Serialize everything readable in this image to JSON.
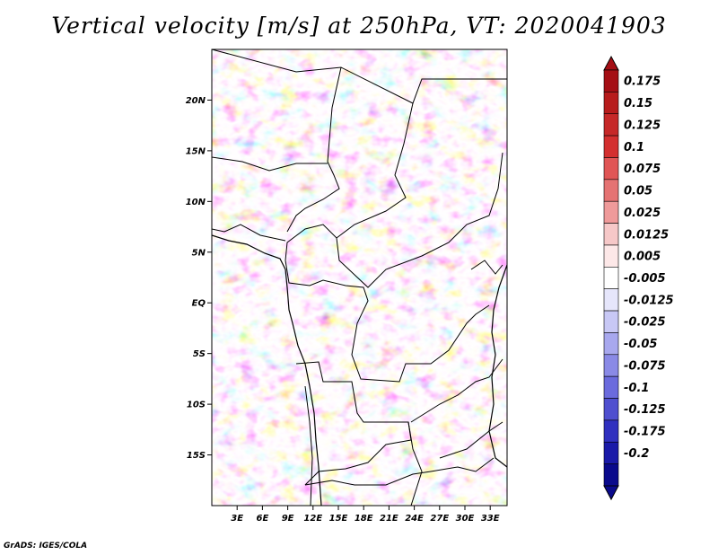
{
  "title": "Vertical velocity [m/s] at 250hPa, VT: 2020041903",
  "credit": "GrADS: IGES/COLA",
  "map": {
    "lon_range": [
      0,
      35
    ],
    "lat_range": [
      -20,
      25
    ],
    "lon_ticks": [
      "3E",
      "6E",
      "9E",
      "12E",
      "15E",
      "18E",
      "21E",
      "24E",
      "27E",
      "30E",
      "33E"
    ],
    "lon_tick_values": [
      3,
      6,
      9,
      12,
      15,
      18,
      21,
      24,
      27,
      30,
      33
    ],
    "lat_ticks": [
      "20N",
      "15N",
      "10N",
      "5N",
      "EQ",
      "5S",
      "10S",
      "15S"
    ],
    "lat_tick_values": [
      20,
      15,
      10,
      5,
      0,
      -5,
      -10,
      -15
    ],
    "variable": "vertical velocity",
    "units": "m/s",
    "level": "250hPa",
    "valid_time": "2020041903"
  },
  "colorbar": {
    "labels": [
      "0.175",
      "0.15",
      "0.125",
      "0.1",
      "0.075",
      "0.05",
      "0.025",
      "0.0125",
      "0.005",
      "-0.005",
      "-0.0125",
      "-0.025",
      "-0.05",
      "-0.075",
      "-0.1",
      "-0.125",
      "-0.175",
      "-0.2"
    ],
    "colors": [
      "#a50f15",
      "#b71c1c",
      "#c62828",
      "#d32f2f",
      "#e05555",
      "#e57373",
      "#ef9a9a",
      "#f6c8c8",
      "#fde8e8",
      "#ffffff",
      "#e6e6fb",
      "#c8c8f5",
      "#a8a8ee",
      "#8a8ae6",
      "#6b6bdd",
      "#4f4fcf",
      "#3030bf",
      "#1a1aa8",
      "#0a0a8c"
    ]
  }
}
